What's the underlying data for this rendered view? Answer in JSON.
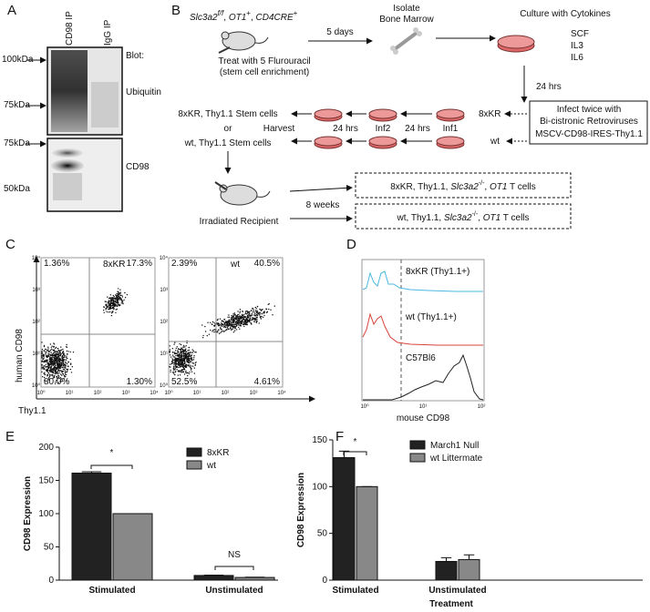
{
  "panel_labels": [
    "A",
    "B",
    "C",
    "D",
    "E",
    "F"
  ],
  "blot": {
    "lanes": [
      "CD98 IP",
      "IgG IP"
    ],
    "blot_label": "Blot:",
    "rows": [
      "Ubiquitin",
      "CD98"
    ],
    "markers": [
      "100kDa",
      "75kDa",
      "75kDa",
      "50kDa"
    ]
  },
  "scheme": {
    "genotype": [
      "Slc3a2",
      "f/f",
      ", ",
      "OT1",
      "+",
      ", ",
      "CD4CRE",
      "+"
    ],
    "treat": [
      "Treat with 5 Flurouracil",
      "(stem cell enrichment)"
    ],
    "days": "5 days",
    "isolate": [
      "Isolate",
      "Bone Marrow"
    ],
    "culture": "Culture with Cytokines",
    "cytokines": [
      "SCF",
      "IL3",
      "IL6"
    ],
    "hrs24": "24 hrs",
    "kr": "8xKR",
    "wt": "wt",
    "infect": [
      "Infect twice with",
      "Bi-cistronic Retroviruses",
      "MSCV-CD98-IRES-Thy1.1"
    ],
    "steps": [
      "Harvest",
      "24 hrs",
      "Inf2",
      "24 hrs",
      "Inf1"
    ],
    "stem": [
      "8xKR, Thy1.1 Stem cells",
      "or",
      "wt, Thy1.1 Stem cells"
    ],
    "recipient": "Irradiated Recipient",
    "weeks": "8 weeks",
    "outcome_kr": [
      "8xKR, Thy1.1, ",
      "Slc3a2",
      "-/-",
      ", ",
      "OT1",
      " T cells"
    ],
    "outcome_wt": [
      "wt, Thy1.1, ",
      "Slc3a2",
      "-/-",
      ", ",
      "OT1",
      " T cells"
    ]
  },
  "flow": {
    "y_label": "human CD98",
    "x_label": "Thy1.1",
    "ticks": [
      "10⁰",
      "10¹",
      "10²",
      "10³",
      "10⁴"
    ],
    "plots": [
      {
        "name": "8xKR",
        "quadrants": [
          "1.36%",
          "17.3%",
          "80.0%",
          "1.30%"
        ]
      },
      {
        "name": "wt",
        "quadrants": [
          "2.39%",
          "40.5%",
          "52.5%",
          "4.61%"
        ]
      }
    ]
  },
  "histogram": {
    "x_label": "mouse CD98",
    "ticks": [
      "10⁰",
      "10¹",
      "10²"
    ],
    "traces": [
      "8xKR (Thy1.1+)",
      "wt (Thy1.1+)",
      "C57Bl6"
    ]
  },
  "chart_data": [
    {
      "type": "bar",
      "y_label": "CD98 Expression",
      "categories": [
        "Stimulated",
        "Unstimulated"
      ],
      "series": [
        {
          "name": "8xKR",
          "color": "#222222",
          "values": [
            161,
            7
          ],
          "errors": [
            2,
            0.5
          ]
        },
        {
          "name": "wt",
          "color": "#888888",
          "values": [
            100,
            4
          ],
          "errors": [
            0,
            0.5
          ]
        }
      ],
      "ylim": [
        0,
        200
      ],
      "yticks": [
        0,
        50,
        100,
        150,
        200
      ],
      "annotations": [
        "*",
        "NS"
      ],
      "legend": "upper right"
    },
    {
      "type": "bar",
      "y_label": "CD98 Expression",
      "x_label": "Treatment",
      "categories": [
        "Stimulated",
        "Unstimulated"
      ],
      "series": [
        {
          "name": "March1 Null",
          "color": "#222222",
          "values": [
            131,
            20
          ],
          "errors": [
            7,
            4
          ]
        },
        {
          "name": "wt Littermate",
          "color": "#888888",
          "values": [
            100,
            22
          ],
          "errors": [
            0,
            5
          ]
        }
      ],
      "ylim": [
        0,
        150
      ],
      "yticks": [
        0,
        50,
        100,
        150
      ],
      "annotations": [
        "*"
      ],
      "legend": "upper right"
    }
  ]
}
